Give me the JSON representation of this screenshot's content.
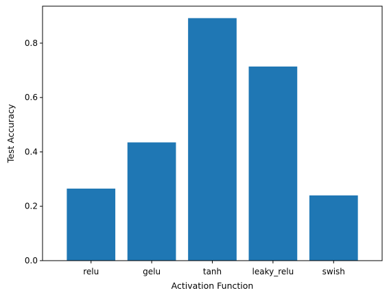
{
  "chart_data": {
    "type": "bar",
    "categories": [
      "relu",
      "gelu",
      "tanh",
      "leaky_relu",
      "swish"
    ],
    "values": [
      0.265,
      0.435,
      0.892,
      0.714,
      0.24
    ],
    "xlabel": "Activation Function",
    "ylabel": "Test Accuracy",
    "ylim": [
      0,
      0.936
    ],
    "yticks": [
      "0.0",
      "0.2",
      "0.4",
      "0.6",
      "0.8"
    ],
    "bar_color": "#1f77b4",
    "grid": false,
    "legend": "none"
  }
}
